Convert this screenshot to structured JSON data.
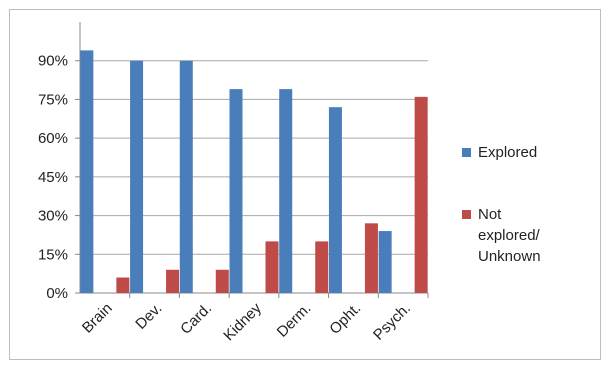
{
  "chart_data": {
    "type": "bar",
    "categories": [
      "Brain",
      "Dev.",
      "Card.",
      "Kidney",
      "Derm.",
      "Opht.",
      "Psych."
    ],
    "series": [
      {
        "name": "Explored",
        "color": "#4a7ebb",
        "values": [
          94,
          90,
          90,
          79,
          79,
          72,
          24
        ]
      },
      {
        "name": "Not explored/\nUnknown",
        "color": "#be4b48",
        "values": [
          6,
          9,
          9,
          20,
          20,
          27,
          76
        ]
      }
    ],
    "ylim": [
      0,
      105
    ],
    "yticks": [
      "0%",
      "15%",
      "30%",
      "45%",
      "60%",
      "75%",
      "90%"
    ],
    "ytick_values": [
      0,
      15,
      30,
      45,
      60,
      75,
      90
    ],
    "grid": true,
    "legend": "right",
    "title": "",
    "xlabel": "",
    "ylabel": ""
  }
}
